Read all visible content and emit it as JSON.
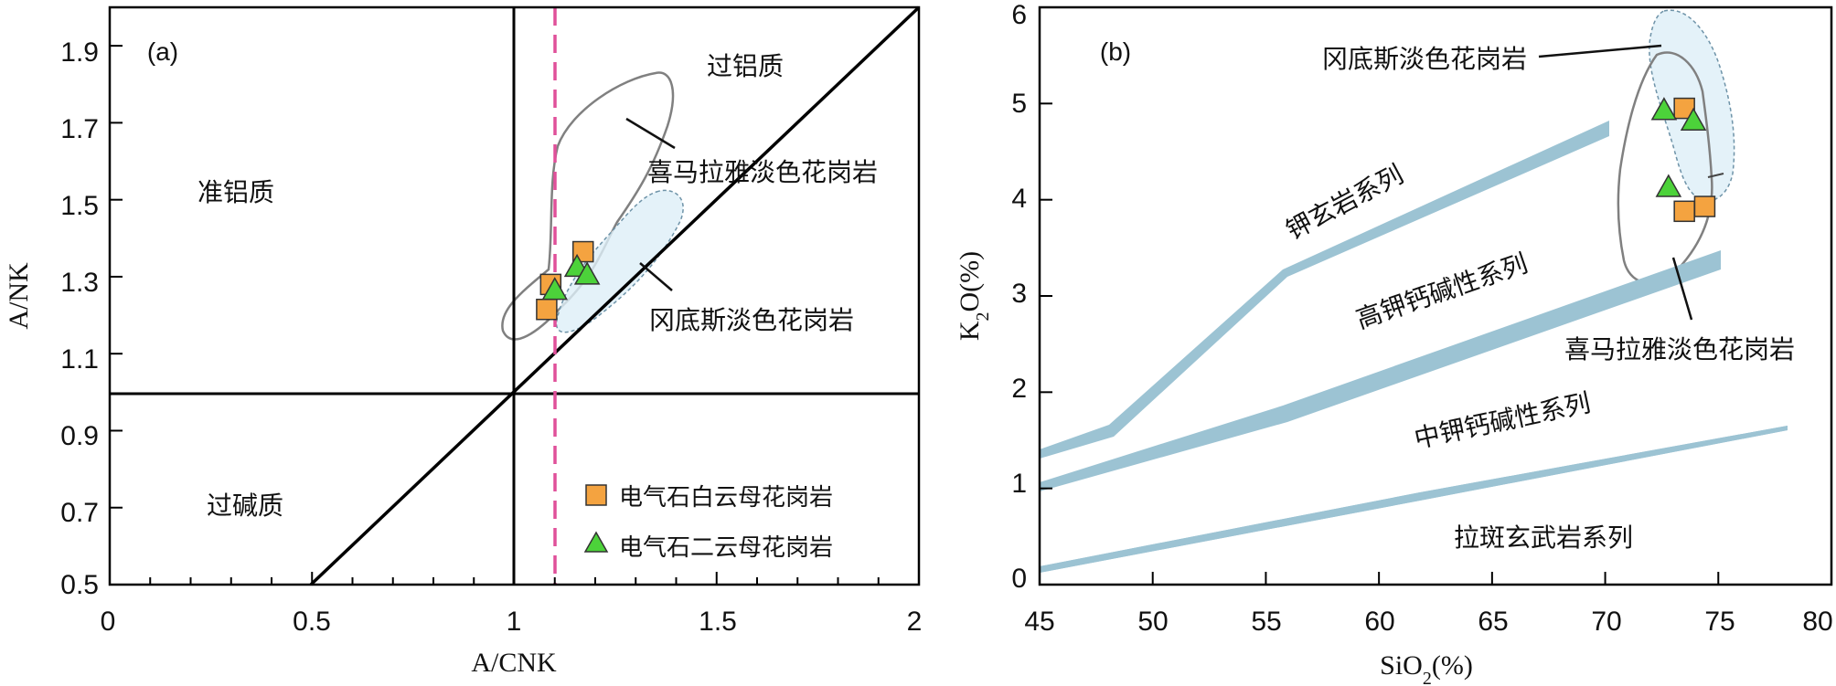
{
  "chart_data": [
    {
      "panel": "(a)",
      "type": "scatter",
      "xlabel": "A/CNK",
      "ylabel": "A/NK",
      "xlim": [
        0,
        2
      ],
      "ylim": [
        0.5,
        2.0
      ],
      "xticks": [
        "0",
        "0.5",
        "1",
        "1.5",
        "2"
      ],
      "yticks": [
        "0.5",
        "0.7",
        "0.9",
        "1.1",
        "1.3",
        "1.5",
        "1.7",
        "1.9"
      ],
      "region_labels": {
        "metaluminous": "准铝质",
        "peraluminous": "过铝质",
        "peralkaline": "过碱质"
      },
      "field_labels": {
        "himalaya": "喜马拉雅淡色花岗岩",
        "gangdese": "冈底斯淡色花岗岩"
      },
      "legend": {
        "square": "电气石白云母花岗岩",
        "triangle": "电气石二云母花岗岩"
      },
      "dashed_line_x": 1.1,
      "series": [
        {
          "name": "电气石白云母花岗岩",
          "marker": "square",
          "color": "#F4A340",
          "points": [
            [
              1.08,
              1.215
            ],
            [
              1.09,
              1.28
            ],
            [
              1.17,
              1.365
            ]
          ]
        },
        {
          "name": "电气石二云母花岗岩",
          "marker": "triangle",
          "color": "#4CD23A",
          "points": [
            [
              1.1,
              1.265
            ],
            [
              1.155,
              1.325
            ],
            [
              1.18,
              1.305
            ]
          ]
        }
      ]
    },
    {
      "panel": "(b)",
      "type": "scatter",
      "xlabel": "SiO2(%)",
      "ylabel": "K2O(%)",
      "xlim": [
        45,
        80
      ],
      "ylim": [
        0,
        6
      ],
      "xticks": [
        "45",
        "50",
        "55",
        "60",
        "65",
        "70",
        "75",
        "80"
      ],
      "yticks": [
        "0",
        "1",
        "2",
        "3",
        "4",
        "5",
        "6"
      ],
      "series_labels": {
        "shoshonite": "钾玄岩系列",
        "high_k": "高钾钙碱性系列",
        "medium_k": "中钾钙碱性系列",
        "tholeiite": "拉斑玄武岩系列"
      },
      "field_labels": {
        "gangdese": "冈底斯淡色花岗岩",
        "himalaya": "喜马拉雅淡色花岗岩"
      },
      "series": [
        {
          "name": "电气石白云母花岗岩",
          "marker": "square",
          "color": "#F4A340",
          "points": [
            [
              73.5,
              4.95
            ],
            [
              74.4,
              3.93
            ],
            [
              73.5,
              3.88
            ]
          ]
        },
        {
          "name": "电气石二云母花岗岩",
          "marker": "triangle",
          "color": "#4CD23A",
          "points": [
            [
              72.6,
              4.93
            ],
            [
              73.9,
              4.82
            ],
            [
              72.8,
              4.13
            ]
          ]
        }
      ]
    }
  ]
}
